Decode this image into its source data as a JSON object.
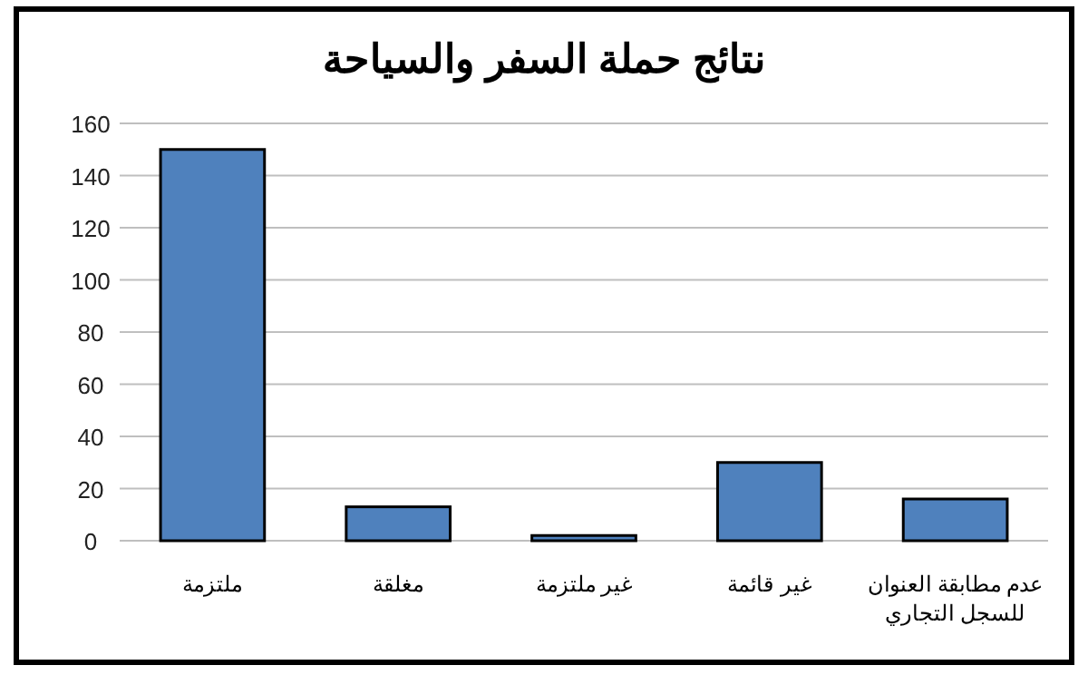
{
  "chart_data": {
    "type": "bar",
    "title": "نتائج حملة السفر والسياحة",
    "categories": [
      "ملتزمة",
      "مغلقة",
      "غير ملتزمة",
      "غير قائمة",
      "عدم مطابقة العنوان للسجل التجاري"
    ],
    "values": [
      150,
      13,
      2,
      30,
      16
    ],
    "color": "#4f81bd",
    "ylim": [
      0,
      160
    ],
    "yticks": [
      0,
      20,
      40,
      60,
      80,
      100,
      120,
      140,
      160
    ],
    "grid": "y"
  }
}
